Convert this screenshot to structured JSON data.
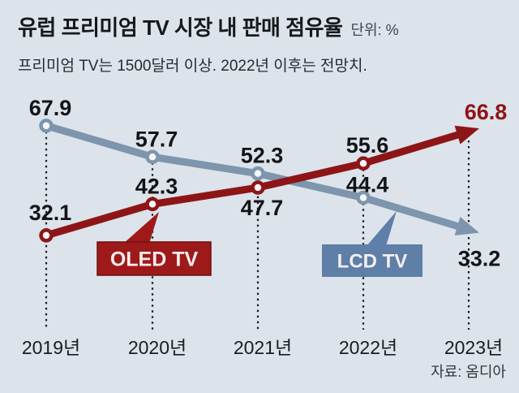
{
  "header": {
    "title": "유럽 프리미엄 TV 시장 내 판매 점유율",
    "unit": "단위: %",
    "subtitle": "프리미엄 TV는 1500달러 이상. 2022년 이후는 전망치."
  },
  "source": "자료: 옴디아",
  "colors": {
    "background": "#dce3ea",
    "text": "#121418",
    "axis_text": "#1a1d22",
    "dotted_line": "#1a1d22",
    "marker_fill": "#f4f6f8",
    "lcd_line": "#7d95ad",
    "lcd_box": "#5d7fa8",
    "oled_line": "#8e1517",
    "oled_box": "#9e1a1a",
    "oled_box_border": "#6f0f10",
    "oled_final_label": "#8e1418",
    "box_text": "#f5eeee"
  },
  "chart_data": {
    "type": "line",
    "title": "유럽 프리미엄 TV 시장 내 판매 점유율",
    "unit": "%",
    "categories": [
      "2019년",
      "2020년",
      "2021년",
      "2022년",
      "2023년"
    ],
    "series": [
      {
        "name": "LCD TV",
        "values": [
          67.9,
          57.7,
          52.3,
          44.4,
          33.2
        ],
        "line_color_key": "lcd_line",
        "box_color_key": "lcd_box",
        "arrow_end": true,
        "label_sides": [
          "above",
          "above",
          "above",
          "above",
          "below"
        ],
        "value_label_color_keys": [
          "text",
          "text",
          "text",
          "text",
          "text"
        ]
      },
      {
        "name": "OLED TV",
        "values": [
          32.1,
          42.3,
          47.7,
          55.6,
          66.8
        ],
        "line_color_key": "oled_line",
        "box_color_key": "oled_box",
        "arrow_end": true,
        "label_sides": [
          "above",
          "above",
          "below",
          "above",
          "above"
        ],
        "value_label_color_keys": [
          "text",
          "text",
          "text",
          "text",
          "oled_final_label"
        ]
      }
    ],
    "ylim": [
      25,
      75
    ],
    "grid": "dotted-vertical-per-category",
    "legend_position": "inline-callout-boxes",
    "source": "자료: 옴디아"
  }
}
